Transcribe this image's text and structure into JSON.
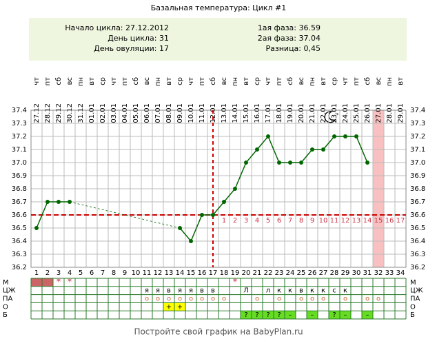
{
  "chart_data": {
    "type": "line",
    "title": "Базальная температура: Цикл #1",
    "info_left": [
      "Начало цикла: 27.12.2012",
      "День цикла: 31",
      "День овуляции: 17"
    ],
    "info_right": [
      "1ая фаза: 36.59",
      "2ая фаза: 37.04",
      "Разница: 0,45"
    ],
    "x": [
      1,
      2,
      3,
      4,
      5,
      6,
      7,
      8,
      9,
      10,
      11,
      12,
      13,
      14,
      15,
      16,
      17,
      18,
      19,
      20,
      21,
      22,
      23,
      24,
      25,
      26,
      27,
      28,
      29,
      30,
      31,
      32,
      33,
      34
    ],
    "dates": [
      "27.12",
      "28.12",
      "29.12",
      "30.12",
      "31.12",
      "01.01",
      "02.01",
      "03.01",
      "04.01",
      "05.01",
      "06.01",
      "07.01",
      "08.01",
      "09.01",
      "10.01",
      "11.01",
      "12.01",
      "13.01",
      "14.01",
      "15.01",
      "16.01",
      "17.01",
      "18.01",
      "19.01",
      "20.01",
      "21.01",
      "22.01",
      "23.01",
      "24.01",
      "25.01",
      "26.01",
      "27.01",
      "28.01",
      "29.01"
    ],
    "weekdays": [
      "чт",
      "пт",
      "сб",
      "вс",
      "пн",
      "вт",
      "ср",
      "чт",
      "пт",
      "сб",
      "вс",
      "пн",
      "вт",
      "ср",
      "чт",
      "пт",
      "сб",
      "вс",
      "пн",
      "вт",
      "ср",
      "чт",
      "пт",
      "сб",
      "вс",
      "пн",
      "вт",
      "ср",
      "чт",
      "пт",
      "сб",
      "вс",
      "пн",
      "вт"
    ],
    "series": [
      {
        "name": "Температура",
        "color": "#006600",
        "values": [
          36.5,
          36.7,
          36.7,
          36.7,
          null,
          null,
          null,
          null,
          null,
          null,
          null,
          null,
          null,
          36.5,
          36.4,
          36.6,
          36.6,
          36.7,
          36.8,
          37.0,
          37.1,
          37.2,
          37.0,
          37.0,
          37.0,
          37.1,
          37.1,
          37.2,
          37.2,
          37.2,
          37.0,
          null,
          null,
          null
        ]
      }
    ],
    "ylim": [
      36.2,
      37.4
    ],
    "yticks": [
      36.2,
      36.3,
      36.4,
      36.5,
      36.6,
      36.7,
      36.8,
      36.9,
      {
        "value": 37,
        "label": "37.0"
      },
      37.1,
      37.2,
      37.3,
      37.4
    ],
    "coverline": 36.6,
    "ovulation_day": 17,
    "predicted_period_days": [
      32
    ],
    "line_color_marks": "#cc0000",
    "luteal_labels": [
      null,
      null,
      null,
      null,
      null,
      null,
      null,
      null,
      null,
      null,
      null,
      null,
      null,
      null,
      null,
      null,
      null,
      "1",
      "2",
      "3",
      "4",
      "5",
      "6",
      "7",
      "8",
      "9",
      "10",
      "11",
      "12",
      "13",
      "14",
      "15",
      "16",
      "17"
    ],
    "rows": [
      {
        "label": "М",
        "fill": "#cc6666",
        "filled_days": [
          1,
          2
        ],
        "cells": [
          null,
          null,
          "*",
          "*",
          null,
          null,
          null,
          null,
          null,
          null,
          null,
          null,
          null,
          null,
          null,
          null,
          null,
          null,
          "*",
          null,
          null,
          null,
          null,
          null,
          null,
          null,
          null,
          null,
          null,
          null,
          null,
          null,
          null,
          null
        ]
      },
      {
        "label": "ЦЖ",
        "fill": null,
        "filled_days": [],
        "cells": [
          null,
          null,
          null,
          null,
          null,
          null,
          null,
          null,
          null,
          null,
          "я",
          "я",
          "в",
          "я",
          "я",
          "в",
          "в",
          null,
          null,
          "Л",
          null,
          "л",
          "к",
          "к",
          "в",
          "к",
          "к",
          "с",
          "к",
          null,
          null,
          null,
          null,
          null
        ]
      },
      {
        "label": "ПА",
        "fill": null,
        "filled_days": [],
        "cells": [
          null,
          null,
          null,
          null,
          null,
          null,
          null,
          null,
          null,
          null,
          "o",
          "o",
          "o",
          "o",
          "o",
          "o",
          "o",
          "o",
          null,
          null,
          "o",
          null,
          "o",
          null,
          "o",
          "o",
          "o",
          null,
          "o",
          null,
          "o",
          "o",
          null,
          null
        ]
      },
      {
        "label": "О",
        "fill": "#ffff00",
        "filled_days": [
          13,
          14
        ],
        "cells": [
          null,
          null,
          null,
          null,
          null,
          null,
          null,
          null,
          null,
          null,
          null,
          null,
          "+",
          "+",
          null,
          null,
          null,
          null,
          null,
          null,
          null,
          null,
          null,
          null,
          null,
          null,
          null,
          null,
          null,
          null,
          null,
          null,
          null,
          null
        ]
      },
      {
        "label": "Б",
        "fill": "#66dd22",
        "filled_days": [
          20,
          21,
          22,
          23,
          24,
          26,
          28,
          29,
          31
        ],
        "cells": [
          null,
          null,
          null,
          null,
          null,
          null,
          null,
          null,
          null,
          null,
          null,
          null,
          null,
          null,
          null,
          null,
          null,
          null,
          null,
          "?",
          "?",
          "?",
          "?",
          "–",
          null,
          "–",
          null,
          "?",
          "–",
          null,
          "–",
          null,
          null,
          null
        ]
      }
    ],
    "footer": "Постройте свой график на BabyPlan.ru"
  }
}
